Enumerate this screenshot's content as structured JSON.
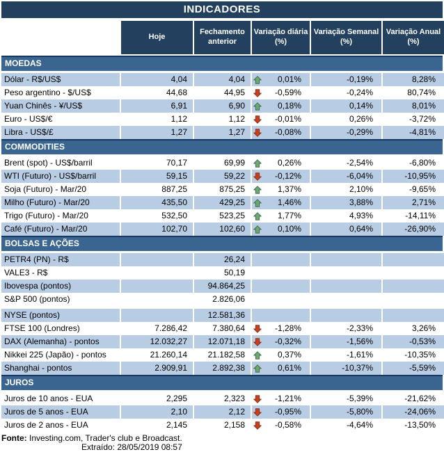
{
  "title": "INDICADORES",
  "columns": [
    "Hoje",
    "Fechamento anterior",
    "Variação diária (%)",
    "Variação Semanal (%)",
    "Variação Anual (%)"
  ],
  "colors": {
    "title_bar": "#23405E",
    "header_cell": "#23405E",
    "section_band": "#3A6591",
    "row_shaded": "#B8CCE4",
    "row_plain": "#FFFFFF",
    "arrow_up_fill": "#6FA86F",
    "arrow_up_stroke": "#3E6E4F",
    "arrow_down_fill": "#C7401F",
    "arrow_down_stroke": "#8E2E13"
  },
  "sections": [
    {
      "name": "MOEDAS",
      "rows": [
        {
          "label": "Dólar - R$/US$",
          "hoje": "4,04",
          "fechamento": "4,04",
          "arrow": "up",
          "var_diaria": "0,01%",
          "var_semanal": "-0,19%",
          "var_anual": "8,28%"
        },
        {
          "label": "Peso argentino - $/US$",
          "hoje": "44,68",
          "fechamento": "44,95",
          "arrow": "down",
          "var_diaria": "-0,59%",
          "var_semanal": "-0,24%",
          "var_anual": "80,74%"
        },
        {
          "label": "Yuan Chinês - ¥/US$",
          "hoje": "6,91",
          "fechamento": "6,90",
          "arrow": "up",
          "var_diaria": "0,18%",
          "var_semanal": "0,14%",
          "var_anual": "8,01%"
        },
        {
          "label": "Euro - US$/€",
          "hoje": "1,12",
          "fechamento": "1,12",
          "arrow": "down",
          "var_diaria": "-0,01%",
          "var_semanal": "0,26%",
          "var_anual": "-3,72%"
        },
        {
          "label": "Libra - US$/£",
          "hoje": "1,27",
          "fechamento": "1,27",
          "arrow": "down",
          "var_diaria": "-0,08%",
          "var_semanal": "-0,29%",
          "var_anual": "-4,81%"
        }
      ]
    },
    {
      "name": "COMMODITIES",
      "rows": [
        {
          "label": "Brent (spot) - US$/barril",
          "hoje": "70,17",
          "fechamento": "69,99",
          "arrow": "up",
          "var_diaria": "0,26%",
          "var_semanal": "-2,54%",
          "var_anual": "-6,80%"
        },
        {
          "label": "WTI (Futuro) - US$/barril",
          "hoje": "59,15",
          "fechamento": "59,22",
          "arrow": "down",
          "var_diaria": "-0,12%",
          "var_semanal": "-6,04%",
          "var_anual": "-10,95%"
        },
        {
          "label": "Soja (Futuro) - Mar/20",
          "hoje": "887,25",
          "fechamento": "875,25",
          "arrow": "up",
          "var_diaria": "1,37%",
          "var_semanal": "2,10%",
          "var_anual": "-9,65%"
        },
        {
          "label": "Milho (Futuro) - Mar/20",
          "hoje": "435,50",
          "fechamento": "429,25",
          "arrow": "up",
          "var_diaria": "1,46%",
          "var_semanal": "3,88%",
          "var_anual": "2,71%"
        },
        {
          "label": "Trigo (Futuro) - Mar/20",
          "hoje": "532,50",
          "fechamento": "523,25",
          "arrow": "up",
          "var_diaria": "1,77%",
          "var_semanal": "4,93%",
          "var_anual": "-14,11%"
        },
        {
          "label": "Café (Futuro) - Mar/20",
          "hoje": "102,70",
          "fechamento": "102,60",
          "arrow": "up",
          "var_diaria": "0,10%",
          "var_semanal": "0,64%",
          "var_anual": "-26,90%"
        }
      ]
    },
    {
      "name": "BOLSAS E AÇÕES",
      "rows": [
        {
          "label": "PETR4 (PN) - R$",
          "hoje": "",
          "fechamento": "26,24",
          "arrow": null,
          "var_diaria": "",
          "var_semanal": "",
          "var_anual": ""
        },
        {
          "label": "VALE3 - R$",
          "hoje": "",
          "fechamento": "50,19",
          "arrow": null,
          "var_diaria": "",
          "var_semanal": "",
          "var_anual": ""
        },
        {
          "label": "Ibovespa (pontos)",
          "hoje": "",
          "fechamento": "94.864,25",
          "arrow": null,
          "var_diaria": "",
          "var_semanal": "",
          "var_anual": ""
        },
        {
          "label": "S&P 500 (pontos)",
          "hoje": "",
          "fechamento": "2.826,06",
          "arrow": null,
          "var_diaria": "",
          "var_semanal": "",
          "var_anual": ""
        },
        {
          "label": "NYSE (pontos)",
          "hoje": "",
          "fechamento": "12.581,36",
          "arrow": null,
          "var_diaria": "",
          "var_semanal": "",
          "var_anual": "",
          "gap_before": true
        },
        {
          "label": "FTSE 100 (Londres)",
          "hoje": "7.286,42",
          "fechamento": "7.380,64",
          "arrow": "down",
          "var_diaria": "-1,28%",
          "var_semanal": "-2,33%",
          "var_anual": "3,26%"
        },
        {
          "label": "DAX (Alemanha) - pontos",
          "hoje": "12.032,27",
          "fechamento": "12.071,18",
          "arrow": "down",
          "var_diaria": "-0,32%",
          "var_semanal": "-1,56%",
          "var_anual": "-0,53%"
        },
        {
          "label": "Nikkei 225 (Japão) - pontos",
          "hoje": "21.260,14",
          "fechamento": "21.182,58",
          "arrow": "up",
          "var_diaria": "0,37%",
          "var_semanal": "-1,61%",
          "var_anual": "-10,35%"
        },
        {
          "label": "Shanghai - pontos",
          "hoje": "2.909,91",
          "fechamento": "2.892,38",
          "arrow": "up",
          "var_diaria": "0,61%",
          "var_semanal": "-10,37%",
          "var_anual": "-5,59%"
        }
      ]
    },
    {
      "name": "JUROS",
      "rows": [
        {
          "label": "Juros de 10 anos - EUA",
          "hoje": "2,295",
          "fechamento": "2,323",
          "arrow": "down",
          "var_diaria": "-1,21%",
          "var_semanal": "-5,39%",
          "var_anual": "-21,62%"
        },
        {
          "label": "Juros de 5 anos - EUA",
          "hoje": "2,10",
          "fechamento": "2,12",
          "arrow": "down",
          "var_diaria": "-0,95%",
          "var_semanal": "-5,80%",
          "var_anual": "-24,06%"
        },
        {
          "label": "Juros de 2 anos - EUA",
          "hoje": "2,145",
          "fechamento": "2,158",
          "arrow": "down",
          "var_diaria": "-0,58%",
          "var_semanal": "-4,64%",
          "var_anual": "-13,50%"
        }
      ]
    }
  ],
  "footer": {
    "source_label": "Fonte:",
    "source_text": "Investing.com, Trader's club e Broadcast.",
    "extracted": "Extraído: 28/05/2019 08:57"
  }
}
